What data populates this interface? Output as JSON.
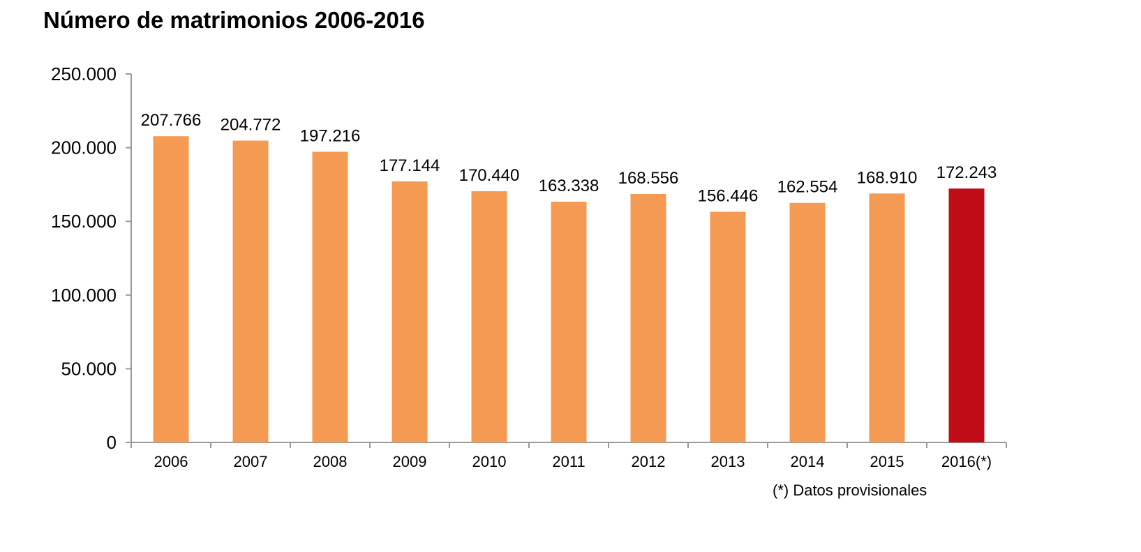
{
  "title": "Número de matrimonios 2006-2016",
  "footnote": "(*) Datos provisionales",
  "colors": {
    "bar": "#f59a52",
    "bar_provisional": "#c00c17",
    "axis": "#999999",
    "text": "#000000"
  },
  "chart_data": {
    "type": "bar",
    "title": "Número de matrimonios 2006-2016",
    "xlabel": "",
    "ylabel": "",
    "categories": [
      "2006",
      "2007",
      "2008",
      "2009",
      "2010",
      "2011",
      "2012",
      "2013",
      "2014",
      "2015",
      "2016(*)"
    ],
    "values": [
      207766,
      204772,
      197216,
      177144,
      170440,
      163338,
      168556,
      156446,
      162554,
      168910,
      172243
    ],
    "value_labels": [
      "207.766",
      "204.772",
      "197.216",
      "177.144",
      "170.440",
      "163.338",
      "168.556",
      "156.446",
      "162.554",
      "168.910",
      "172.243"
    ],
    "highlight": [
      "2016(*)"
    ],
    "ylim": [
      0,
      250000
    ],
    "yticks": [
      0,
      50000,
      100000,
      150000,
      200000,
      250000
    ],
    "ytick_labels": [
      "0",
      "50.000",
      "100.000",
      "150.000",
      "200.000",
      "250.000"
    ],
    "grid": false,
    "legend": "none"
  }
}
